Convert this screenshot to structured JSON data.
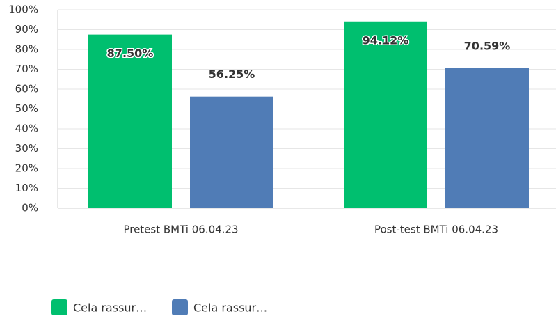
{
  "chart_data": {
    "type": "bar",
    "categories": [
      "Pretest BMTi 06.04.23",
      "Post-test BMTi 06.04.23"
    ],
    "series": [
      {
        "name": "Cela rassur…",
        "color": "#00bf6f",
        "values": [
          87.5,
          94.12
        ],
        "value_labels": [
          "87.50%",
          "94.12%"
        ]
      },
      {
        "name": "Cela rassur…",
        "color": "#507cb6",
        "values": [
          56.25,
          70.59
        ],
        "value_labels": [
          "56.25%",
          "70.59%"
        ]
      }
    ],
    "ylim": [
      0,
      100
    ],
    "yticks": [
      {
        "value": 0,
        "label": "0%"
      },
      {
        "value": 10,
        "label": "10%"
      },
      {
        "value": 20,
        "label": "20%"
      },
      {
        "value": 30,
        "label": "30%"
      },
      {
        "value": 40,
        "label": "40%"
      },
      {
        "value": 50,
        "label": "50%"
      },
      {
        "value": 60,
        "label": "60%"
      },
      {
        "value": 70,
        "label": "70%"
      },
      {
        "value": 80,
        "label": "80%"
      },
      {
        "value": 90,
        "label": "90%"
      },
      {
        "value": 100,
        "label": "100%"
      }
    ],
    "grid": true,
    "legend": "bottom-left"
  }
}
